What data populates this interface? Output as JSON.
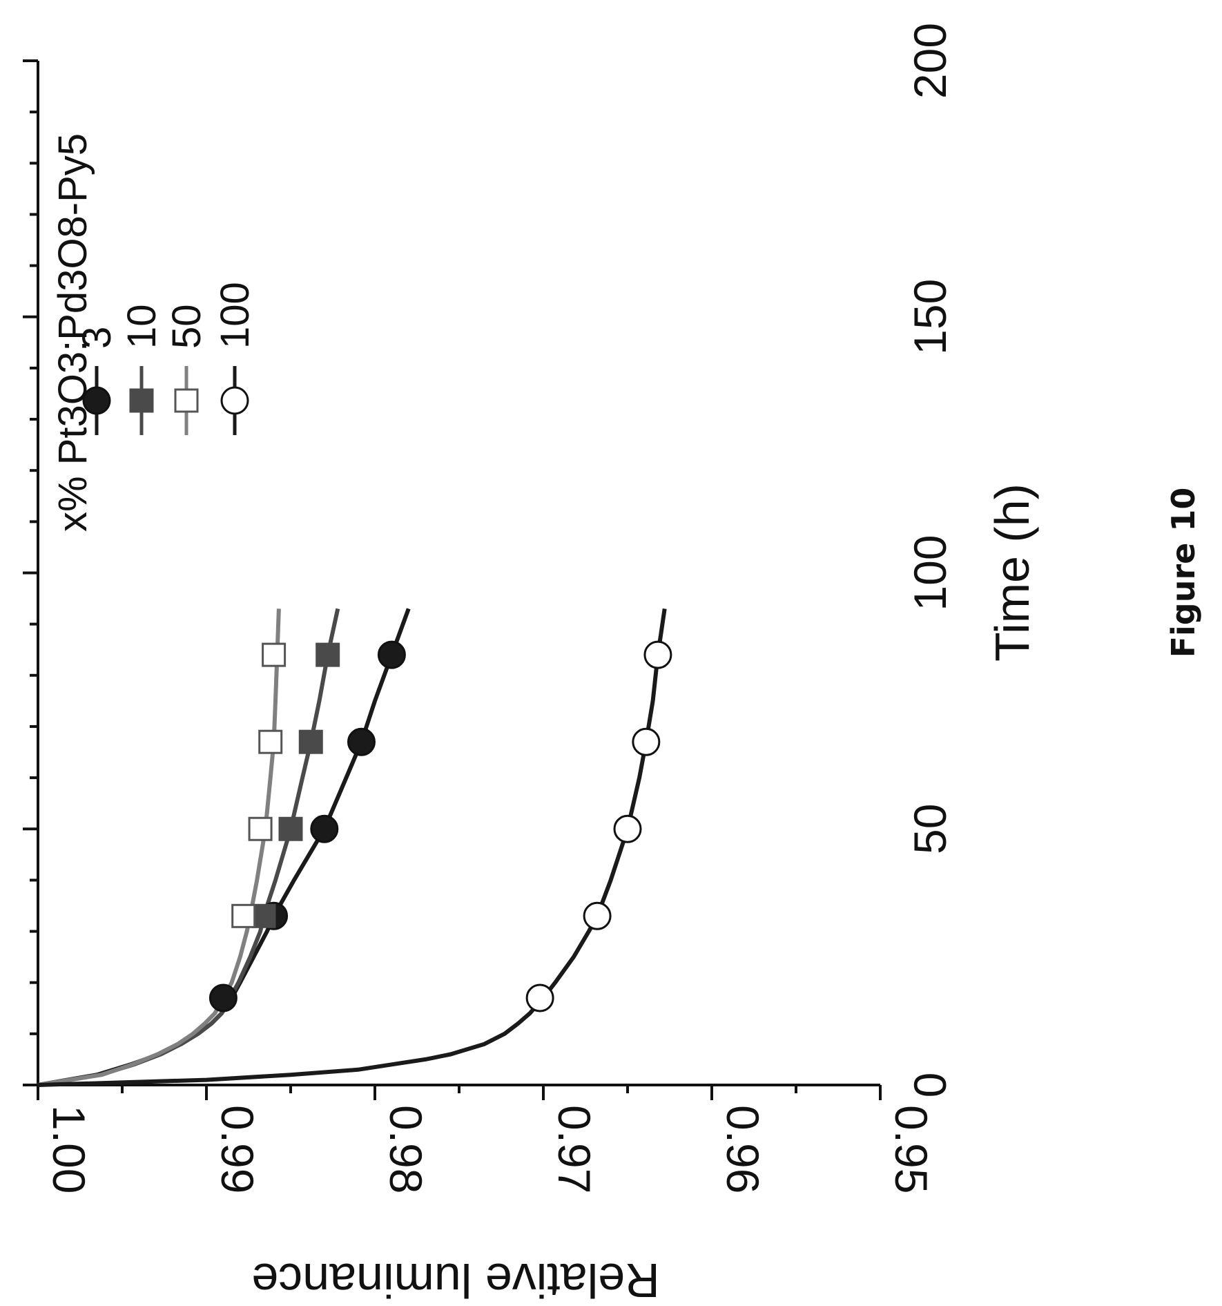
{
  "figure_caption": "Figure 10",
  "chart_data": {
    "type": "line",
    "title": "",
    "xlabel": "Time (h)",
    "ylabel": "Relative luminance",
    "xlim": [
      0,
      200
    ],
    "ylim": [
      0.95,
      1.0
    ],
    "xticks": [
      0,
      50,
      100,
      150,
      200
    ],
    "xtick_labels": [
      "0",
      "50",
      "100",
      "150",
      "200"
    ],
    "yticks": [
      1.0,
      0.99,
      0.98,
      0.97,
      0.96,
      0.95
    ],
    "ytick_labels": [
      "1.00",
      "0.99",
      "0.98",
      "0.97",
      "0.96",
      "0.95"
    ],
    "legend_title": "x% Pt3O3:Pd3O8-Py5",
    "legend_position": "top-right",
    "grid": false,
    "orientation": "rotated 90° clockwise",
    "series": [
      {
        "name": "3",
        "marker": "filled-circle",
        "color": "#1a1a1a",
        "x": [
          0,
          2,
          4,
          6,
          8,
          10,
          12,
          14,
          17,
          20,
          25,
          30,
          33,
          40,
          50,
          60,
          67,
          75,
          84,
          93
        ],
        "y": [
          1.0,
          0.9965,
          0.9945,
          0.9928,
          0.9915,
          0.9905,
          0.9897,
          0.9891,
          0.9885,
          0.988,
          0.9872,
          0.9864,
          0.986,
          0.9848,
          0.983,
          0.9817,
          0.9808,
          0.98,
          0.979,
          0.978
        ],
        "marker_x": [
          17,
          33,
          50,
          67,
          84
        ],
        "marker_y": [
          0.989,
          0.986,
          0.983,
          0.9808,
          0.979
        ]
      },
      {
        "name": "10",
        "marker": "filled-square",
        "color": "#4a4a4a",
        "x": [
          0,
          2,
          4,
          6,
          8,
          10,
          12,
          14,
          17,
          20,
          25,
          30,
          33,
          40,
          50,
          60,
          67,
          75,
          84,
          93
        ],
        "y": [
          1.0,
          0.9963,
          0.9943,
          0.9927,
          0.9915,
          0.9905,
          0.9897,
          0.9891,
          0.9886,
          0.9881,
          0.9874,
          0.9868,
          0.9866,
          0.9859,
          0.985,
          0.9843,
          0.9838,
          0.9833,
          0.9828,
          0.9822
        ],
        "marker_x": [
          33,
          50,
          67,
          84
        ],
        "marker_y": [
          0.9866,
          0.985,
          0.9838,
          0.9828
        ]
      },
      {
        "name": "50",
        "marker": "open-square",
        "color": "#808080",
        "x": [
          0,
          2,
          4,
          6,
          8,
          10,
          12,
          14,
          17,
          20,
          25,
          30,
          33,
          40,
          50,
          60,
          67,
          75,
          84,
          93
        ],
        "y": [
          1.0,
          0.9962,
          0.9944,
          0.9929,
          0.9917,
          0.9908,
          0.9901,
          0.9895,
          0.989,
          0.9885,
          0.988,
          0.9876,
          0.9874,
          0.987,
          0.9865,
          0.9862,
          0.986,
          0.9859,
          0.9858,
          0.9857
        ],
        "marker_x": [
          33,
          50,
          67,
          84
        ],
        "marker_y": [
          0.9878,
          0.9868,
          0.9862,
          0.986
        ]
      },
      {
        "name": "100",
        "marker": "open-circle",
        "color": "#1a1a1a",
        "x": [
          0,
          1,
          2,
          3,
          4,
          5,
          6,
          8,
          10,
          12,
          14,
          17,
          20,
          25,
          30,
          33,
          40,
          50,
          60,
          67,
          75,
          84,
          93
        ],
        "y": [
          1.0,
          0.99,
          0.985,
          0.981,
          0.979,
          0.977,
          0.9755,
          0.9735,
          0.9723,
          0.9715,
          0.9708,
          0.97,
          0.9693,
          0.9682,
          0.9673,
          0.9668,
          0.966,
          0.965,
          0.9643,
          0.9639,
          0.9635,
          0.9632,
          0.9628
        ],
        "marker_x": [
          17,
          33,
          50,
          67,
          84
        ],
        "marker_y": [
          0.9702,
          0.9668,
          0.965,
          0.9639,
          0.9632
        ]
      }
    ]
  }
}
